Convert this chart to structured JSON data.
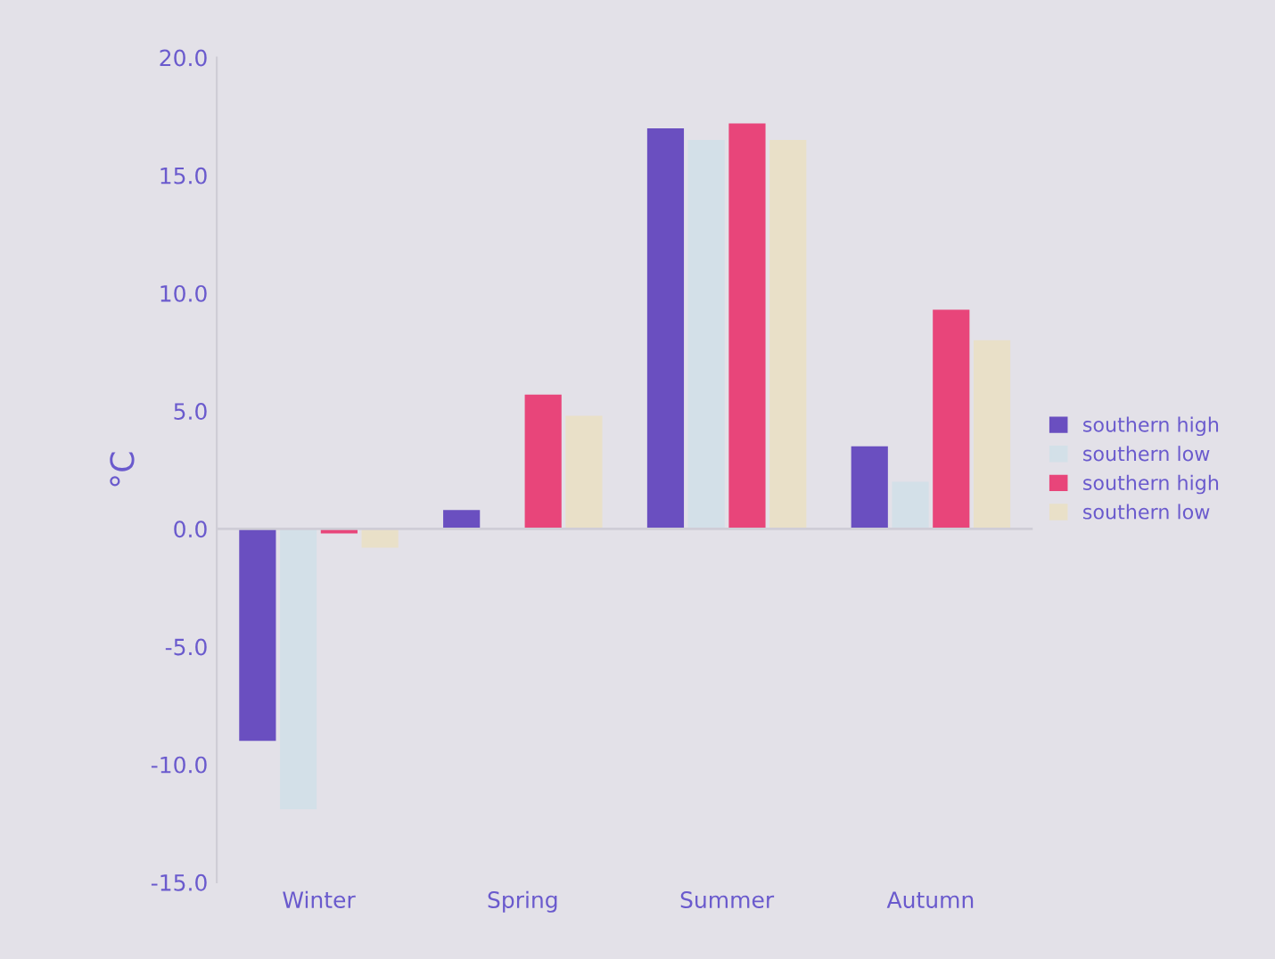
{
  "chart_data": {
    "type": "bar",
    "ylabel": "°C",
    "categories": [
      "Winter",
      "Spring",
      "Summer",
      "Autumn"
    ],
    "series": [
      {
        "name": "southern high",
        "color": "#6a4fc0",
        "values": [
          -9.0,
          0.8,
          17.0,
          3.5
        ]
      },
      {
        "name": "southern low",
        "color": "#d3e0e8",
        "values": [
          -11.9,
          null,
          16.5,
          2.0
        ]
      },
      {
        "name": "southern high",
        "color": "#e8457a",
        "values": [
          -0.2,
          5.7,
          17.2,
          9.3
        ]
      },
      {
        "name": "southern low",
        "color": "#e9e0c8",
        "values": [
          -0.8,
          4.8,
          16.5,
          8.0
        ]
      }
    ],
    "ylim": [
      -15,
      20
    ],
    "yticks": [
      {
        "value": -15,
        "label": "-15.0"
      },
      {
        "value": -10,
        "label": "-10.0"
      },
      {
        "value": -5,
        "label": "-5.0"
      },
      {
        "value": 0,
        "label": "0.0"
      },
      {
        "value": 5,
        "label": "5.0"
      },
      {
        "value": 10,
        "label": "10.0"
      },
      {
        "value": 15,
        "label": "15.0"
      },
      {
        "value": 20,
        "label": "20.0"
      }
    ],
    "ref_lines": [
      {
        "axis": "y",
        "value": 0,
        "color": "#cfcdd6"
      }
    ],
    "grid": false,
    "legend": "right"
  }
}
